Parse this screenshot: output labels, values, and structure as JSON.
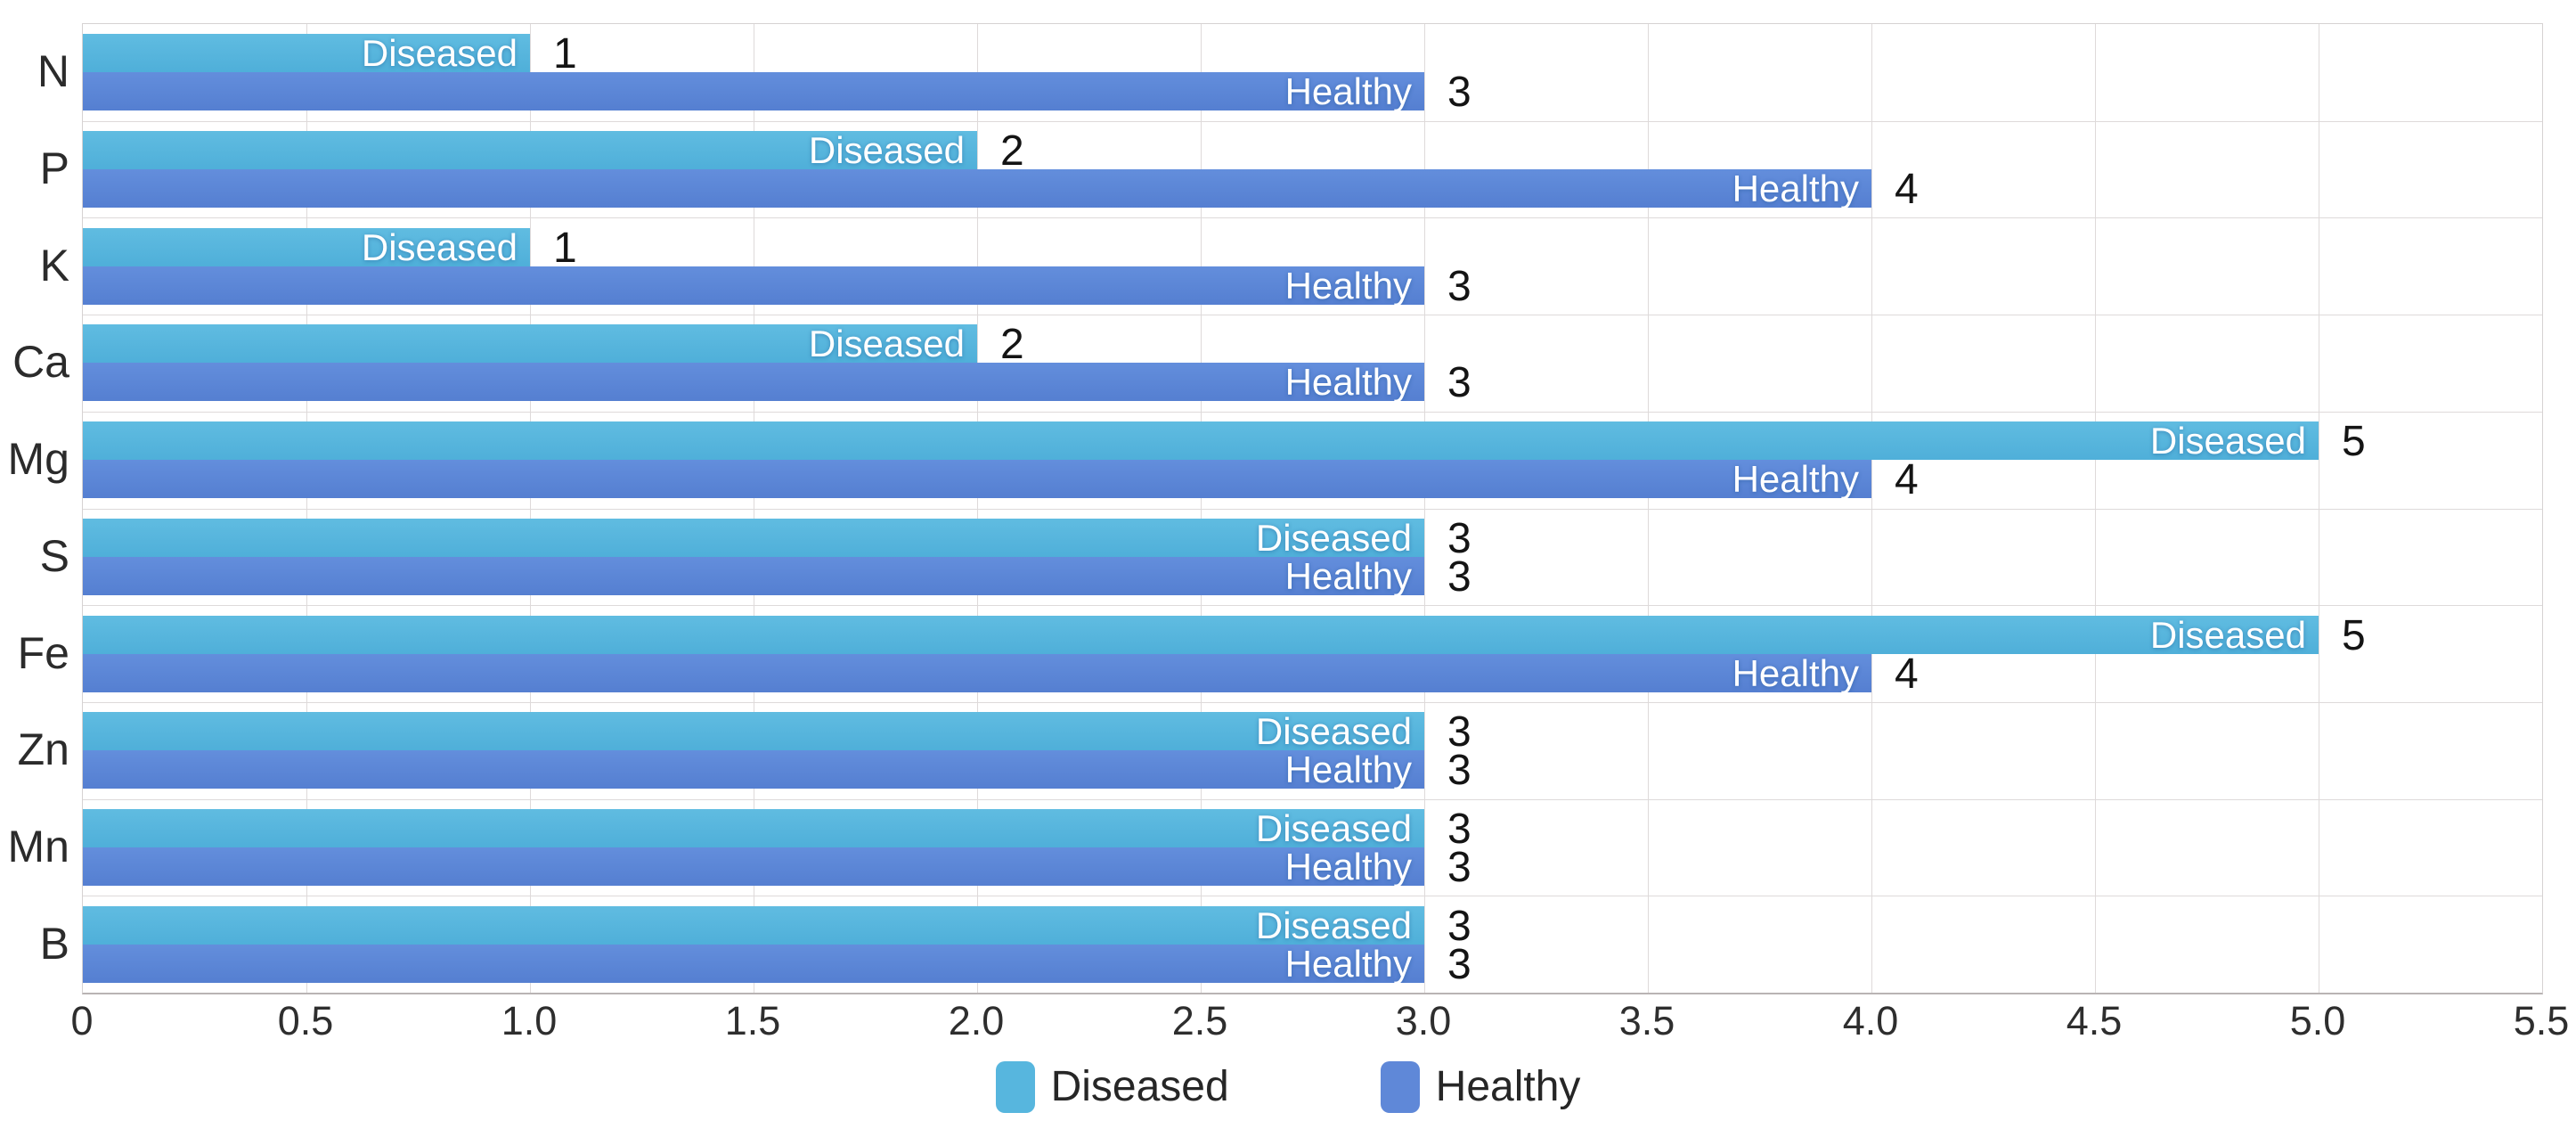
{
  "chart_data": {
    "type": "bar",
    "orientation": "horizontal",
    "categories": [
      "N",
      "P",
      "K",
      "Ca",
      "Mg",
      "S",
      "Fe",
      "Zn",
      "Mn",
      "B"
    ],
    "series": [
      {
        "name": "Diseased",
        "color": "#57b6de",
        "values": [
          1,
          2,
          1,
          2,
          5,
          3,
          5,
          3,
          3,
          3
        ]
      },
      {
        "name": "Healthy",
        "color": "#5f88d8",
        "values": [
          3,
          4,
          3,
          3,
          4,
          3,
          4,
          3,
          3,
          3
        ]
      }
    ],
    "xlim": [
      0,
      5.5
    ],
    "xtick_values": [
      0,
      0.5,
      1.0,
      1.5,
      2.0,
      2.5,
      3.0,
      3.5,
      4.0,
      4.5,
      5.0,
      5.5
    ],
    "xtick_labels": [
      "0",
      "0.5",
      "1.0",
      "1.5",
      "2.0",
      "2.5",
      "3.0",
      "3.5",
      "4.0",
      "4.5",
      "5.0",
      "5.5"
    ],
    "grid": true,
    "bar_labels_inside": "series name",
    "bar_labels_outside": "value",
    "legend_position": "bottom"
  },
  "legend": {
    "items": [
      {
        "label": "Diseased",
        "color": "#57b6de"
      },
      {
        "label": "Healthy",
        "color": "#5f88d8"
      }
    ]
  }
}
